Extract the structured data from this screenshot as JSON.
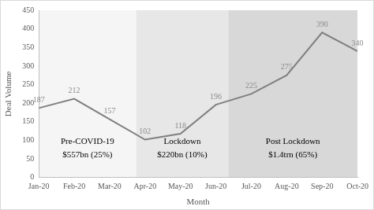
{
  "chart_data": {
    "type": "line",
    "categories": [
      "Jan-20",
      "Feb-20",
      "Mar-20",
      "Apr-20",
      "May-20",
      "Jun-20",
      "Jul-20",
      "Aug-20",
      "Sep-20",
      "Oct-20"
    ],
    "values": [
      187,
      212,
      157,
      102,
      118,
      196,
      225,
      275,
      390,
      340
    ],
    "color": "#7f7f7f",
    "marker": "none",
    "x_label": "Month",
    "y_label": "Deal Volume",
    "ylim": [
      0,
      450
    ],
    "yticks": [
      0,
      50,
      100,
      150,
      200,
      250,
      300,
      350,
      400,
      450
    ],
    "grid": false,
    "data_labels": true,
    "annotations": [
      {
        "title": "Pre-COVID-19",
        "text": "$557bn (25%)"
      },
      {
        "title": "Lockdown",
        "text": "$220bn (10%)"
      },
      {
        "title": "Post Lockdown",
        "text": "$1.4trn (65%)"
      }
    ]
  }
}
